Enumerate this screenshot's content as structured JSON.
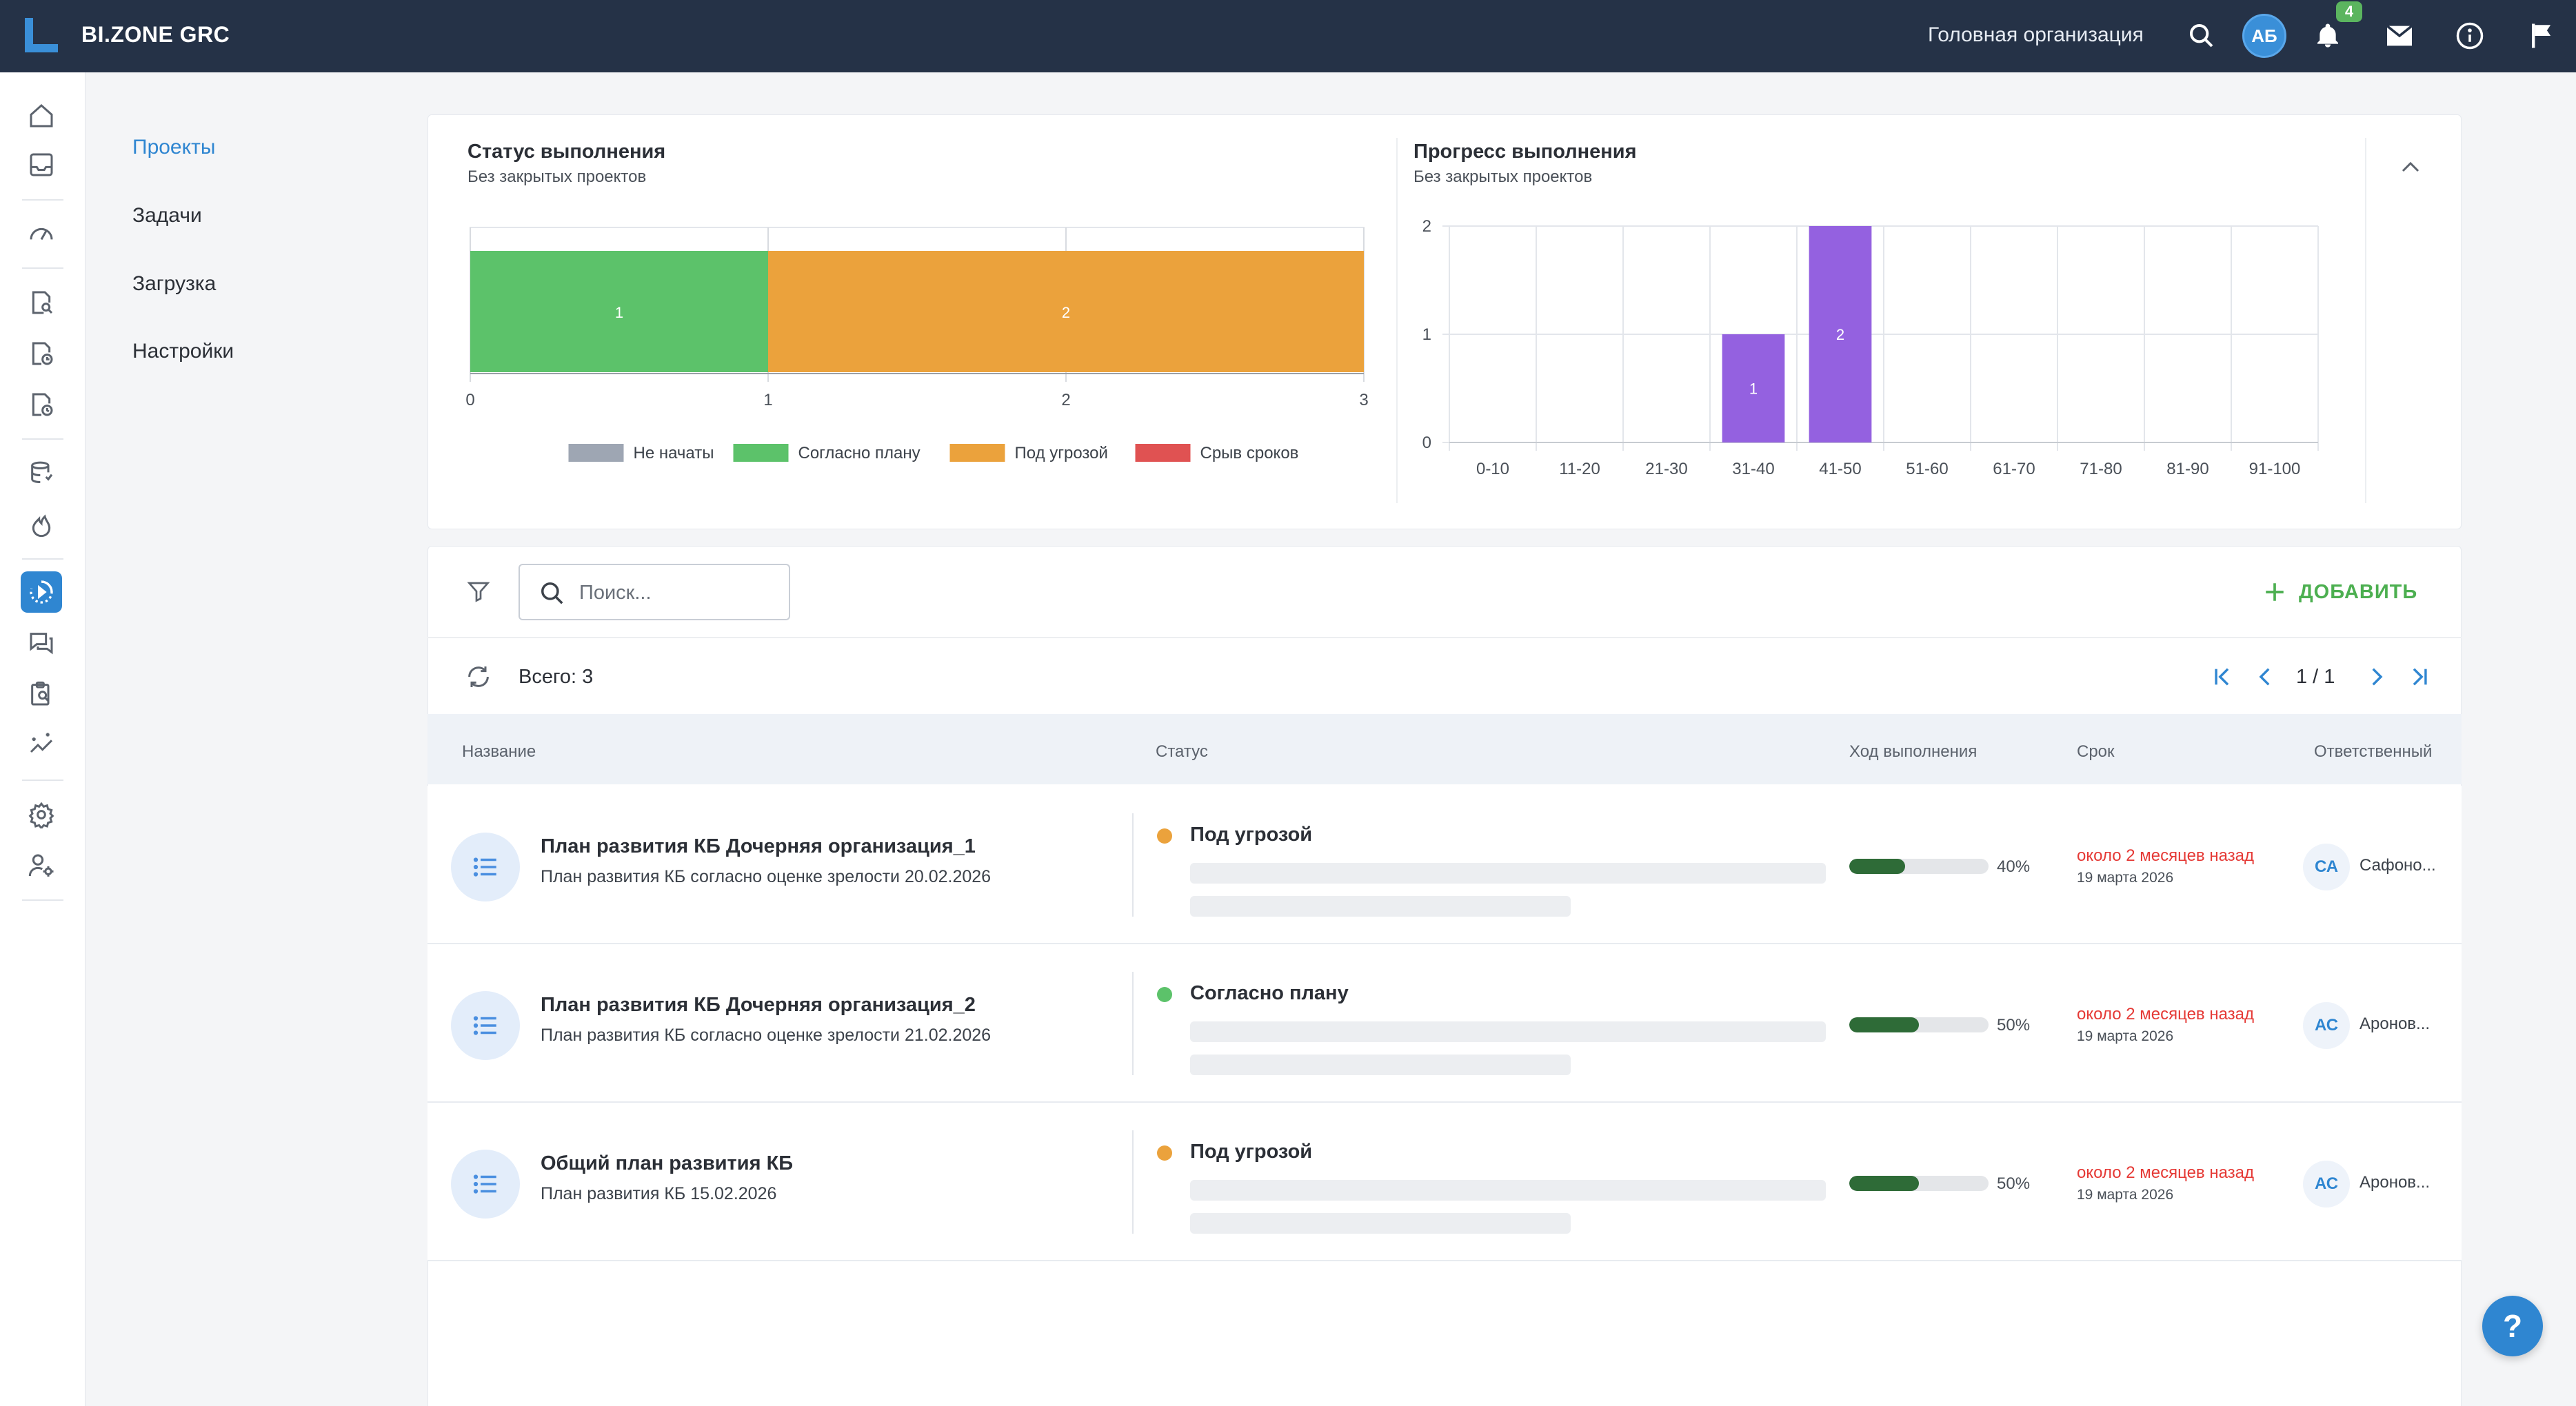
{
  "app": {
    "brand": "BI.ZONE GRC",
    "organization": "Головная организация",
    "user_initials": "АБ",
    "notifications_count": "4"
  },
  "submenu": {
    "items": [
      {
        "label": "Проекты",
        "active": true
      },
      {
        "label": "Задачи",
        "active": false
      },
      {
        "label": "Загрузка",
        "active": false
      },
      {
        "label": "Настройки",
        "active": false
      }
    ]
  },
  "status_chart": {
    "title": "Статус выполнения",
    "subtitle": "Без закрытых проектов",
    "chart_data": {
      "type": "bar",
      "orientation": "horizontal-stacked",
      "series": [
        {
          "name": "Не начаты",
          "value": 0,
          "color": "#9ea6b3"
        },
        {
          "name": "Согласно плану",
          "value": 1,
          "color": "#5cc26a"
        },
        {
          "name": "Под угрозой",
          "value": 2,
          "color": "#eba23c"
        },
        {
          "name": "Срыв сроков",
          "value": 0,
          "color": "#e05252"
        }
      ],
      "xlim": [
        0,
        3
      ],
      "x_ticks": [
        "0",
        "1",
        "2",
        "3"
      ],
      "legend_placement": "bottom"
    }
  },
  "progress_chart": {
    "title": "Прогресс выполнения",
    "subtitle": "Без закрытых проектов",
    "chart_data": {
      "type": "bar",
      "categories": [
        "0-10",
        "11-20",
        "21-30",
        "31-40",
        "41-50",
        "51-60",
        "61-70",
        "71-80",
        "81-90",
        "91-100"
      ],
      "values": [
        0,
        0,
        0,
        1,
        2,
        0,
        0,
        0,
        0,
        0
      ],
      "ylim": [
        0,
        2
      ],
      "y_ticks": [
        "0",
        "1",
        "2"
      ],
      "color": "#9461e0",
      "grid": true
    }
  },
  "toolbar": {
    "search_placeholder": "Поиск...",
    "add_label": "ДОБАВИТЬ",
    "total": "Всего: 3",
    "page": "1 / 1"
  },
  "table": {
    "headers": {
      "name": "Название",
      "status": "Статус",
      "progress": "Ход выполнения",
      "deadline": "Срок",
      "responsible": "Ответственный"
    },
    "rows": [
      {
        "title": "План развития КБ Дочерняя организация_1",
        "subtitle": "План развития КБ согласно оценке зрелости 20.02.2026",
        "status": "Под угрозой",
        "status_color": "#eba23c",
        "progress": 0.4,
        "progress_label": "40%",
        "deadline": "около 2 месяцев назад",
        "deadline_date": "19 марта 2026",
        "initials": "СА",
        "responsible": "Сафоно..."
      },
      {
        "title": "План развития КБ Дочерняя организация_2",
        "subtitle": "План развития КБ согласно оценке зрелости 21.02.2026",
        "status": "Согласно плану",
        "status_color": "#5cc26a",
        "progress": 0.5,
        "progress_label": "50%",
        "deadline": "около 2 месяцев назад",
        "deadline_date": "19 марта 2026",
        "initials": "АС",
        "responsible": "Аронов..."
      },
      {
        "title": "Общий план развития КБ",
        "subtitle": "План развития КБ 15.02.2026",
        "status": "Под угрозой",
        "status_color": "#eba23c",
        "progress": 0.5,
        "progress_label": "50%",
        "deadline": "около 2 месяцев назад",
        "deadline_date": "19 марта 2026",
        "initials": "АС",
        "responsible": "Аронов..."
      }
    ]
  },
  "help": {
    "label": "?"
  }
}
